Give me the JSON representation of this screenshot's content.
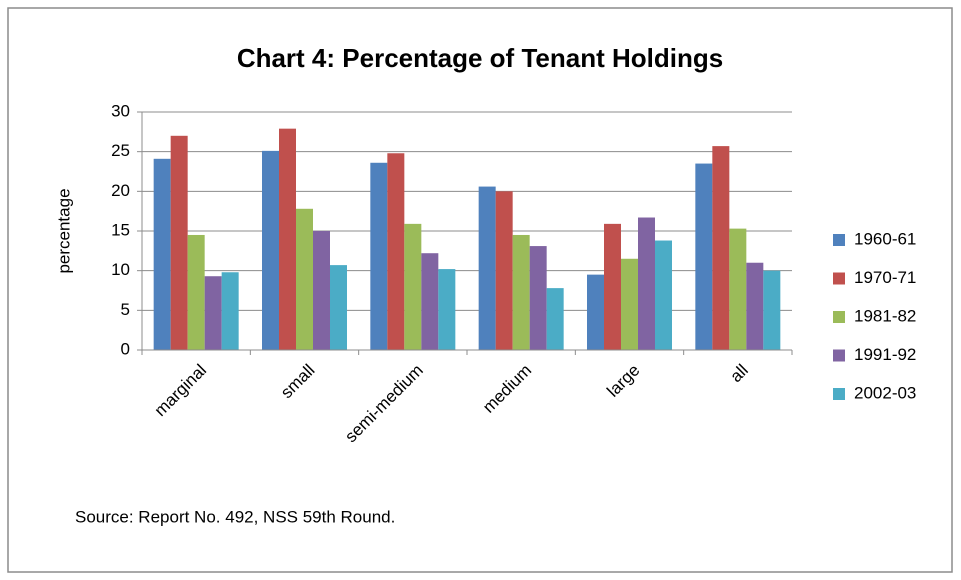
{
  "chart_data": {
    "type": "bar",
    "title": "Chart 4: Percentage of Tenant Holdings",
    "ylabel": "percentage",
    "source": "Source: Report No. 492, NSS 59th Round.",
    "categories": [
      "marginal",
      "small",
      "semi-medium",
      "medium",
      "large",
      "all"
    ],
    "series": [
      {
        "name": "1960-61",
        "color": "#4f81bd",
        "values": [
          24.1,
          25.1,
          23.6,
          20.6,
          9.5,
          23.5
        ]
      },
      {
        "name": "1970-71",
        "color": "#c0504d",
        "values": [
          27,
          27.9,
          24.8,
          20,
          15.9,
          25.7
        ]
      },
      {
        "name": "1981-82",
        "color": "#9bbb59",
        "values": [
          14.5,
          17.8,
          15.9,
          14.5,
          11.5,
          15.3
        ]
      },
      {
        "name": "1991-92",
        "color": "#8064a2",
        "values": [
          9.3,
          15,
          12.2,
          13.1,
          16.7,
          11
        ]
      },
      {
        "name": "2002-03",
        "color": "#4bacc6",
        "values": [
          9.8,
          10.7,
          10.2,
          7.8,
          13.8,
          10
        ]
      }
    ],
    "ylim": [
      0,
      30
    ],
    "yticks": [
      0,
      5,
      10,
      15,
      20,
      25,
      30
    ],
    "grid": true,
    "legend": "right"
  }
}
